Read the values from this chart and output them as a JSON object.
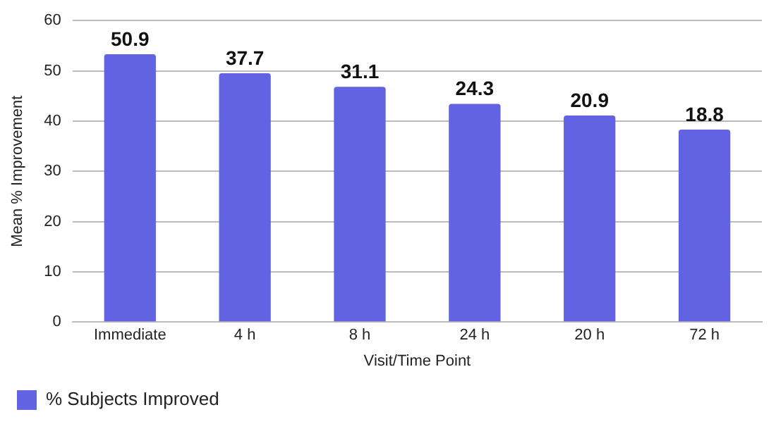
{
  "chart_data": {
    "type": "bar",
    "xlabel": "Visit/Time Point",
    "ylabel": "Mean % Improvement",
    "categories": [
      "Immediate",
      "4 h",
      "8 h",
      "24 h",
      "20 h",
      "72 h"
    ],
    "series": [
      {
        "name": "% Subjects Improved",
        "color": "#6163e3",
        "values": [
          53.3,
          49.5,
          46.8,
          43.4,
          41.1,
          38.3
        ]
      }
    ],
    "annotations": [
      {
        "text": "50.9",
        "x": "Immediate",
        "y": 53.3
      },
      {
        "text": "37.7",
        "x": "4 h",
        "y": 49.5
      },
      {
        "text": "31.1",
        "x": "8 h",
        "y": 46.8
      },
      {
        "text": "24.3",
        "x": "24 h",
        "y": 43.4
      },
      {
        "text": "20.9",
        "x": "20 h",
        "y": 41.1
      },
      {
        "text": "18.8",
        "x": "72 h",
        "y": 38.3
      }
    ],
    "ylim": [
      0,
      60
    ],
    "yticks": [
      0,
      10,
      20,
      30,
      40,
      50,
      60
    ],
    "grid": "y",
    "legend": "bottom left"
  }
}
